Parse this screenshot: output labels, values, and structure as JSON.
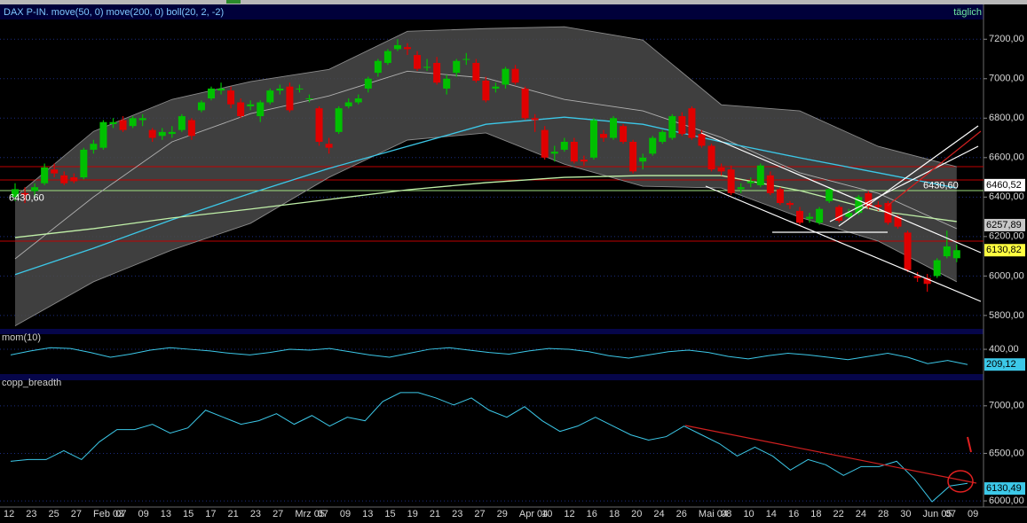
{
  "chart_data": [
    {
      "type": "candlestick",
      "title": "DAX P-IN. move(50, 0) move(200, 0) boll(20, 2, -2)",
      "period": "täglich",
      "x_labels": [
        "12",
        "23",
        "25",
        "27",
        "Feb 03",
        "07",
        "09",
        "13",
        "15",
        "17",
        "21",
        "23",
        "27",
        "Mrz 05",
        "07",
        "09",
        "13",
        "15",
        "19",
        "21",
        "23",
        "27",
        "29",
        "Apr 04",
        "10",
        "12",
        "16",
        "18",
        "20",
        "24",
        "26",
        "Mai 04",
        "08",
        "10",
        "14",
        "16",
        "18",
        "22",
        "24",
        "28",
        "30",
        "Jun 05",
        "07",
        "09"
      ],
      "up_color": "#00c000",
      "down_color": "#e00000",
      "band_fill": "#4a4a4a",
      "ylim": [
        5750,
        7300
      ],
      "yticks": [
        {
          "value": 7200,
          "label": "7200,00"
        },
        {
          "value": 7000,
          "label": "7000,00"
        },
        {
          "value": 6800,
          "label": "6800,00"
        },
        {
          "value": 6600,
          "label": "6600,00"
        },
        {
          "value": 6400,
          "label": "6400,00"
        },
        {
          "value": 6200,
          "label": "6200,00"
        },
        {
          "value": 6000,
          "label": "6000,00"
        },
        {
          "value": 5800,
          "label": "5800,00"
        }
      ],
      "candles": [
        [
          6400,
          6470,
          6380,
          6440
        ],
        [
          6420,
          6450,
          6370,
          6410
        ],
        [
          6430,
          6470,
          6400,
          6450
        ],
        [
          6470,
          6570,
          6460,
          6550
        ],
        [
          6540,
          6570,
          6500,
          6520
        ],
        [
          6510,
          6530,
          6460,
          6470
        ],
        [
          6500,
          6520,
          6470,
          6480
        ],
        [
          6500,
          6650,
          6490,
          6640
        ],
        [
          6640,
          6690,
          6620,
          6670
        ],
        [
          6650,
          6790,
          6640,
          6780
        ],
        [
          6770,
          6800,
          6750,
          6780
        ],
        [
          6790,
          6810,
          6730,
          6740
        ],
        [
          6760,
          6810,
          6750,
          6800
        ],
        [
          6790,
          6820,
          6760,
          6800
        ],
        [
          6740,
          6750,
          6680,
          6700
        ],
        [
          6710,
          6750,
          6690,
          6730
        ],
        [
          6720,
          6760,
          6700,
          6730
        ],
        [
          6740,
          6820,
          6730,
          6810
        ],
        [
          6790,
          6800,
          6690,
          6710
        ],
        [
          6840,
          6890,
          6830,
          6880
        ],
        [
          6900,
          6960,
          6890,
          6950
        ],
        [
          6940,
          6980,
          6920,
          6950
        ],
        [
          6940,
          6960,
          6850,
          6870
        ],
        [
          6880,
          6900,
          6800,
          6810
        ],
        [
          6860,
          6890,
          6840,
          6870
        ],
        [
          6810,
          6890,
          6780,
          6880
        ],
        [
          6880,
          6950,
          6870,
          6940
        ],
        [
          6940,
          6970,
          6920,
          6950
        ],
        [
          6960,
          6980,
          6830,
          6840
        ],
        [
          6950,
          6970,
          6930,
          6950
        ],
        [
          6900,
          6920,
          6880,
          6900
        ],
        [
          6850,
          6860,
          6660,
          6680
        ],
        [
          6670,
          6700,
          6620,
          6650
        ],
        [
          6730,
          6860,
          6720,
          6850
        ],
        [
          6860,
          6900,
          6850,
          6880
        ],
        [
          6880,
          6920,
          6870,
          6900
        ],
        [
          6950,
          7010,
          6930,
          7000
        ],
        [
          7030,
          7100,
          7010,
          7090
        ],
        [
          7080,
          7150,
          7070,
          7140
        ],
        [
          7150,
          7200,
          7140,
          7170
        ],
        [
          7160,
          7180,
          7120,
          7150
        ],
        [
          7120,
          7140,
          7040,
          7050
        ],
        [
          7060,
          7100,
          7040,
          7060
        ],
        [
          7080,
          7110,
          6970,
          6980
        ],
        [
          6950,
          7020,
          6920,
          7000
        ],
        [
          7030,
          7100,
          7010,
          7090
        ],
        [
          7100,
          7130,
          7070,
          7100
        ],
        [
          7080,
          7100,
          6980,
          6990
        ],
        [
          6990,
          7010,
          6880,
          6890
        ],
        [
          6950,
          6980,
          6930,
          6960
        ],
        [
          6970,
          7060,
          6950,
          7050
        ],
        [
          7050,
          7070,
          6970,
          6980
        ],
        [
          6950,
          6960,
          6790,
          6800
        ],
        [
          6800,
          6820,
          6730,
          6790
        ],
        [
          6740,
          6760,
          6590,
          6600
        ],
        [
          6620,
          6660,
          6580,
          6630
        ],
        [
          6640,
          6700,
          6630,
          6680
        ],
        [
          6680,
          6700,
          6570,
          6580
        ],
        [
          6590,
          6610,
          6560,
          6580
        ],
        [
          6600,
          6800,
          6590,
          6790
        ],
        [
          6720,
          6740,
          6680,
          6700
        ],
        [
          6700,
          6810,
          6690,
          6800
        ],
        [
          6760,
          6770,
          6670,
          6680
        ],
        [
          6680,
          6690,
          6520,
          6530
        ],
        [
          6580,
          6620,
          6540,
          6600
        ],
        [
          6620,
          6710,
          6610,
          6700
        ],
        [
          6680,
          6740,
          6670,
          6730
        ],
        [
          6700,
          6820,
          6690,
          6810
        ],
        [
          6810,
          6830,
          6710,
          6720
        ],
        [
          6850,
          6860,
          6690,
          6700
        ],
        [
          6720,
          6740,
          6650,
          6660
        ],
        [
          6660,
          6670,
          6530,
          6540
        ],
        [
          6550,
          6570,
          6510,
          6530
        ],
        [
          6540,
          6560,
          6410,
          6420
        ],
        [
          6440,
          6470,
          6420,
          6450
        ],
        [
          6470,
          6500,
          6450,
          6480
        ],
        [
          6460,
          6570,
          6450,
          6560
        ],
        [
          6510,
          6530,
          6410,
          6420
        ],
        [
          6440,
          6450,
          6360,
          6370
        ],
        [
          6370,
          6380,
          6340,
          6360
        ],
        [
          6330,
          6350,
          6260,
          6270
        ],
        [
          6290,
          6320,
          6270,
          6300
        ],
        [
          6270,
          6350,
          6260,
          6340
        ],
        [
          6380,
          6450,
          6370,
          6440
        ],
        [
          6350,
          6360,
          6270,
          6280
        ],
        [
          6300,
          6340,
          6290,
          6320
        ],
        [
          6320,
          6410,
          6310,
          6400
        ],
        [
          6420,
          6430,
          6340,
          6350
        ],
        [
          6360,
          6380,
          6330,
          6350
        ],
        [
          6370,
          6380,
          6260,
          6270
        ],
        [
          6300,
          6310,
          6240,
          6250
        ],
        [
          6220,
          6230,
          6020,
          6030
        ],
        [
          6000,
          6020,
          5970,
          5990
        ],
        [
          5990,
          6010,
          5920,
          5960
        ],
        [
          6000,
          6090,
          5990,
          6080
        ],
        [
          6100,
          6230,
          6090,
          6150
        ],
        [
          6090,
          6160,
          6070,
          6130.82
        ]
      ],
      "overlays": [
        {
          "color": "#8a8a8a",
          "x": [
            0,
            8,
            16,
            24,
            32,
            40,
            48,
            56,
            64,
            72,
            80,
            88,
            96
          ],
          "values": [
            6401,
            6733,
            6895,
            6985,
            7047,
            7240,
            7254,
            7263,
            7196,
            6868,
            6837,
            6657,
            6554
          ]
        },
        {
          "color": "#8a8a8a",
          "x": [
            0,
            8,
            16,
            24,
            32,
            40,
            48,
            56,
            64,
            72,
            80,
            88,
            96
          ],
          "values": [
            5747,
            5971,
            6132,
            6267,
            6500,
            6689,
            6725,
            6567,
            6455,
            6446,
            6298,
            6177,
            5971
          ]
        },
        {
          "color": "#b0b0b0",
          "x": [
            0,
            8,
            16,
            24,
            32,
            40,
            48,
            56,
            64,
            72,
            80,
            88,
            96
          ],
          "values": [
            6087,
            6401,
            6680,
            6823,
            6913,
            7038,
            7003,
            6895,
            6837,
            6702,
            6523,
            6419,
            6240
          ]
        },
        {
          "color": "#3cc8e8",
          "x": [
            0,
            8,
            16,
            24,
            32,
            40,
            48,
            56,
            64,
            72,
            80,
            88,
            96
          ],
          "values": [
            6007,
            6141,
            6285,
            6419,
            6545,
            6657,
            6769,
            6805,
            6769,
            6680,
            6599,
            6523,
            6446
          ]
        },
        {
          "color": "#c0f0a8",
          "x": [
            0,
            8,
            16,
            24,
            32,
            40,
            48,
            56,
            64,
            72,
            80,
            88,
            96
          ],
          "values": [
            6195,
            6240,
            6294,
            6339,
            6388,
            6437,
            6473,
            6500,
            6509,
            6509,
            6433,
            6330,
            6276
          ]
        }
      ],
      "levels": [
        {
          "value": 6554,
          "color": "#c00000"
        },
        {
          "value": 6487,
          "color": "#c00000"
        },
        {
          "value": 6433,
          "color": "#a0e080"
        },
        {
          "value": 6177,
          "color": "#c00000"
        }
      ],
      "annotations": [
        {
          "value": 6430.6,
          "label": "6430,60"
        },
        {
          "value": 6430.6,
          "label": "6430,60"
        }
      ],
      "price_tags": [
        {
          "value": 6460.52,
          "label": "6460,52",
          "color": "#ffffff"
        },
        {
          "value": 6257.89,
          "label": "6257,89",
          "color": "#c8c8c8"
        },
        {
          "value": 6130.82,
          "label": "6130,82",
          "color": "#ffff40"
        }
      ]
    },
    {
      "type": "line",
      "title": "mom(10)",
      "color": "#3cc8e8",
      "values": [
        330,
        380,
        420,
        410,
        360,
        300,
        340,
        390,
        420,
        400,
        380,
        350,
        330,
        360,
        400,
        390,
        410,
        370,
        330,
        300,
        350,
        400,
        420,
        390,
        360,
        340,
        380,
        410,
        400,
        370,
        320,
        290,
        330,
        370,
        390,
        360,
        310,
        280,
        320,
        350,
        330,
        300,
        270,
        310,
        350,
        300,
        220,
        260,
        209.12
      ],
      "ylim": [
        100,
        590
      ],
      "yticks": [
        {
          "value": 400,
          "label": "400,00"
        }
      ],
      "tag": {
        "value": 209.12,
        "label": "209,12",
        "color": "#3cc8e8"
      }
    },
    {
      "type": "line",
      "title": "copp_breadth",
      "color": "#3cc8e8",
      "values": [
        6417,
        6435,
        6435,
        6528,
        6435,
        6620,
        6750,
        6750,
        6806,
        6713,
        6768,
        6954,
        6880,
        6806,
        6843,
        6917,
        6806,
        6898,
        6787,
        6880,
        6843,
        7046,
        7139,
        7139,
        7083,
        7009,
        7083,
        6954,
        6880,
        6991,
        6843,
        6731,
        6787,
        6880,
        6787,
        6694,
        6639,
        6676,
        6787,
        6694,
        6602,
        6472,
        6565,
        6472,
        6324,
        6435,
        6380,
        6268,
        6361,
        6361,
        6417,
        6231,
        5991,
        6157,
        6185
      ],
      "ylim": [
        5940,
        7250
      ],
      "yticks": [
        {
          "value": 7000,
          "label": "7000,00"
        },
        {
          "value": 6500,
          "label": "6500,00"
        },
        {
          "value": 6000,
          "label": "6000,00"
        }
      ],
      "tag": {
        "value": 6130.49,
        "label": "6130,49",
        "color": "#3cc8e8"
      }
    }
  ]
}
